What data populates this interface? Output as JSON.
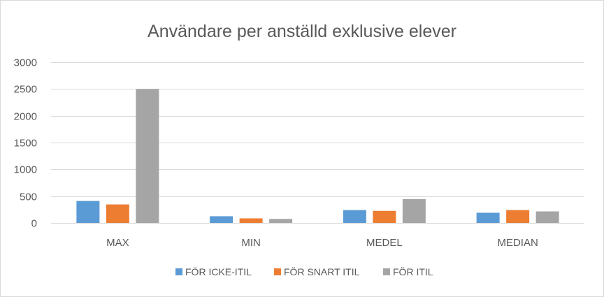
{
  "chart_data": {
    "type": "bar",
    "title": "Användare per anställd exklusive elever",
    "xlabel": "",
    "ylabel": "",
    "categories": [
      "MAX",
      "MIN",
      "MEDEL",
      "MEDIAN"
    ],
    "series": [
      {
        "name": "FÖR ICKE-ITIL",
        "color": "#5b9bd5",
        "values": [
          410,
          125,
          240,
          190
        ]
      },
      {
        "name": "FÖR SNART ITIL",
        "color": "#ed7d31",
        "values": [
          345,
          85,
          225,
          240
        ]
      },
      {
        "name": "FÖR ITIL",
        "color": "#a5a5a5",
        "values": [
          2500,
          75,
          445,
          215
        ]
      }
    ],
    "ylim": [
      0,
      3000
    ],
    "yticks": [
      0,
      500,
      1000,
      1500,
      2000,
      2500,
      3000
    ],
    "grid": true,
    "legend_position": "bottom"
  }
}
